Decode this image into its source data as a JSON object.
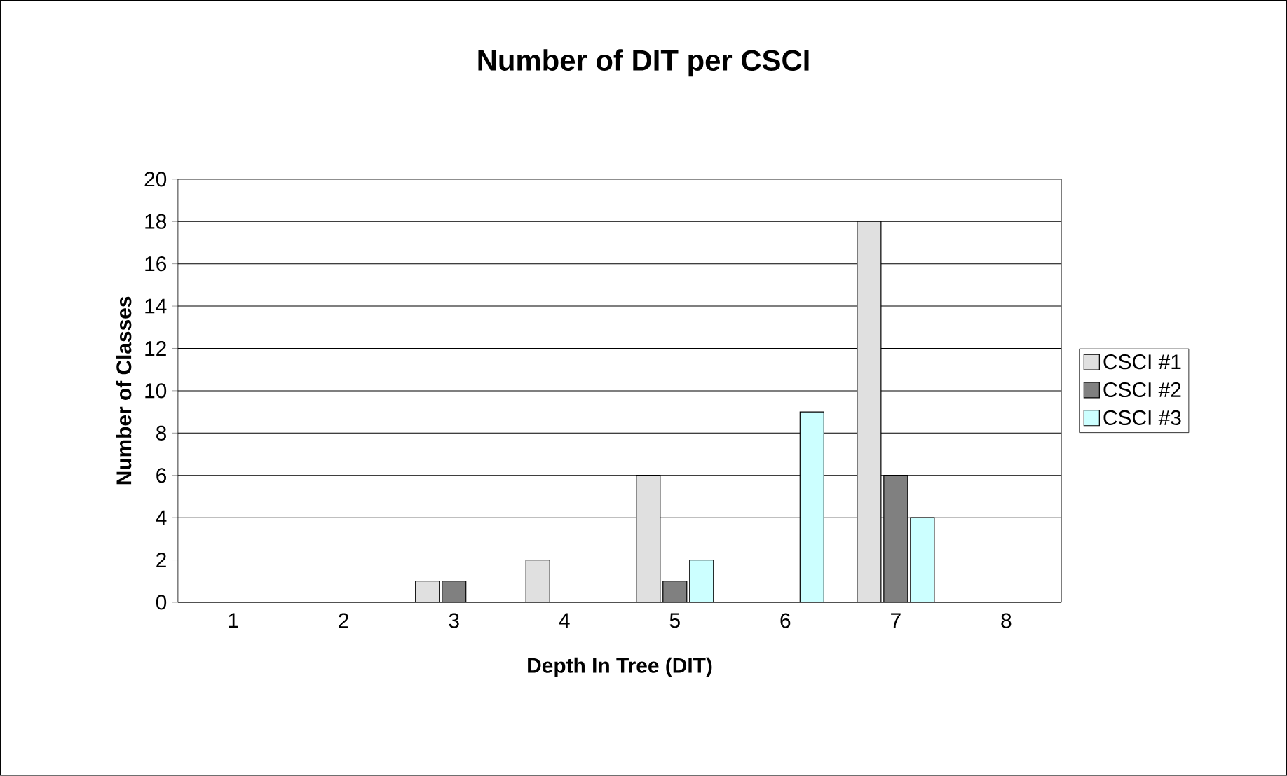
{
  "chart_data": {
    "type": "bar",
    "title": "Number of DIT per CSCI",
    "xlabel": "Depth In Tree (DIT)",
    "ylabel": "Number of Classes",
    "categories": [
      "1",
      "2",
      "3",
      "4",
      "5",
      "6",
      "7",
      "8"
    ],
    "series": [
      {
        "name": "CSCI #1",
        "color": "#e0e0e0",
        "values": [
          0,
          0,
          1,
          2,
          6,
          0,
          18,
          0
        ]
      },
      {
        "name": "CSCI #2",
        "color": "#808080",
        "values": [
          0,
          0,
          1,
          0,
          1,
          0,
          6,
          0
        ]
      },
      {
        "name": "CSCI #3",
        "color": "#ccffff",
        "values": [
          0,
          0,
          0,
          0,
          2,
          9,
          4,
          0
        ]
      }
    ],
    "ylim": [
      0,
      20
    ],
    "yticks": [
      0,
      2,
      4,
      6,
      8,
      10,
      12,
      14,
      16,
      18,
      20
    ],
    "grid": "y",
    "legend": "right"
  }
}
